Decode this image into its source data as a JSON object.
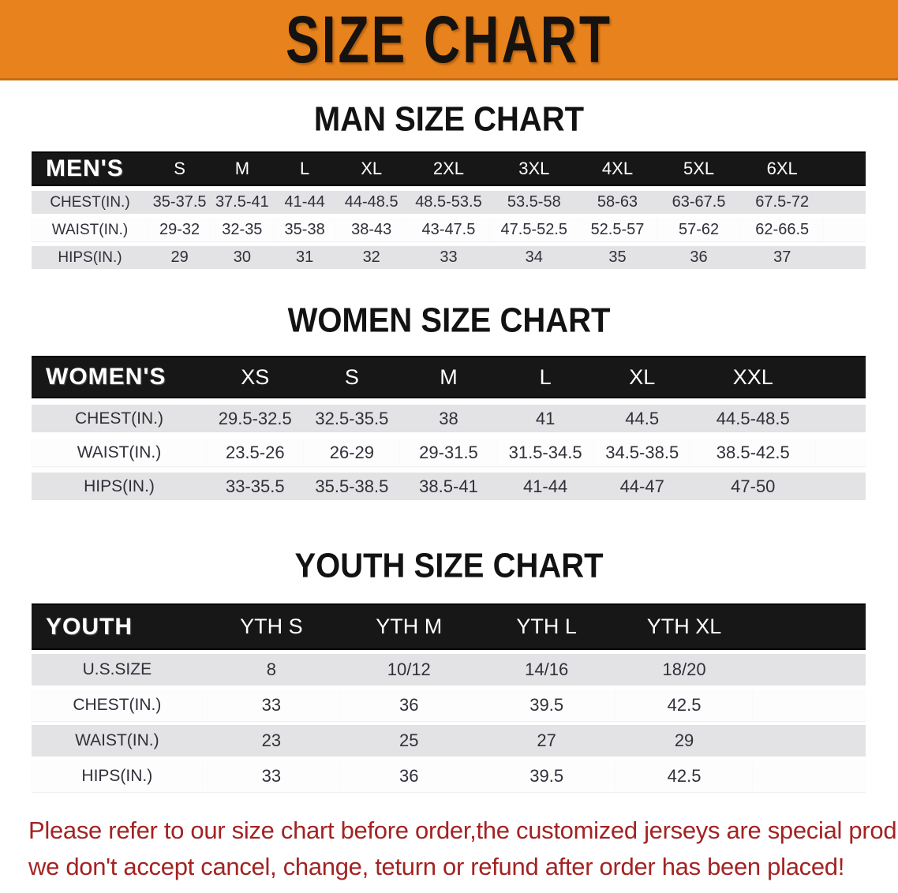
{
  "banner": {
    "title": "SIZE CHART",
    "bg_color": "#E8821C",
    "text_color": "#151210"
  },
  "sections": [
    {
      "id": "men",
      "heading": "MAN SIZE CHART",
      "header_label": "MEN'S",
      "columns": [
        "S",
        "M",
        "L",
        "XL",
        "2XL",
        "3XL",
        "4XL",
        "5XL",
        "6XL"
      ],
      "rows": [
        {
          "label": "CHEST(IN.)",
          "values": [
            "35-37.5",
            "37.5-41",
            "41-44",
            "44-48.5",
            "48.5-53.5",
            "53.5-58",
            "58-63",
            "63-67.5",
            "67.5-72"
          ]
        },
        {
          "label": "WAIST(IN.)",
          "values": [
            "29-32",
            "32-35",
            "35-38",
            "38-43",
            "43-47.5",
            "47.5-52.5",
            "52.5-57",
            "57-62",
            "62-66.5"
          ]
        },
        {
          "label": "HIPS(IN.)",
          "values": [
            "29",
            "30",
            "31",
            "32",
            "33",
            "34",
            "35",
            "36",
            "37"
          ]
        }
      ]
    },
    {
      "id": "women",
      "heading": "WOMEN SIZE CHART",
      "header_label": "WOMEN'S",
      "columns": [
        "XS",
        "S",
        "M",
        "L",
        "XL",
        "XXL"
      ],
      "rows": [
        {
          "label": "CHEST(IN.)",
          "values": [
            "29.5-32.5",
            "32.5-35.5",
            "38",
            "41",
            "44.5",
            "44.5-48.5"
          ]
        },
        {
          "label": "WAIST(IN.)",
          "values": [
            "23.5-26",
            "26-29",
            "29-31.5",
            "31.5-34.5",
            "34.5-38.5",
            "38.5-42.5"
          ]
        },
        {
          "label": "HIPS(IN.)",
          "values": [
            "33-35.5",
            "35.5-38.5",
            "38.5-41",
            "41-44",
            "44-47",
            "47-50"
          ]
        }
      ]
    },
    {
      "id": "youth",
      "heading": "YOUTH SIZE CHART",
      "header_label": "YOUTH",
      "columns": [
        "YTH S",
        "YTH M",
        "YTH L",
        "YTH XL"
      ],
      "rows": [
        {
          "label": "U.S.SIZE",
          "values": [
            "8",
            "10/12",
            "14/16",
            "18/20"
          ]
        },
        {
          "label": "CHEST(IN.)",
          "values": [
            "33",
            "36",
            "39.5",
            "42.5"
          ]
        },
        {
          "label": "WAIST(IN.)",
          "values": [
            "23",
            "25",
            "27",
            "29"
          ]
        },
        {
          "label": "HIPS(IN.)",
          "values": [
            "33",
            "36",
            "39.5",
            "42.5"
          ]
        }
      ]
    }
  ],
  "disclaimer": {
    "line1": "Please refer to our size chart before order,the customized jerseys are special products,",
    "line2": "we don't accept cancel, change, teturn or refund after order has been placed!",
    "color": "#A32323"
  }
}
